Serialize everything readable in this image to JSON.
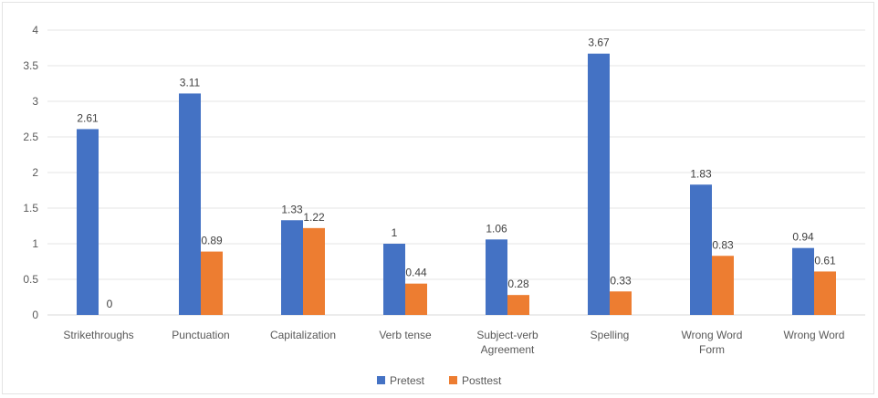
{
  "chart_data": {
    "type": "bar",
    "title": "",
    "xlabel": "",
    "ylabel": "",
    "ylim": [
      0,
      4
    ],
    "yticks": [
      "0",
      "0.5",
      "1",
      "1.5",
      "2",
      "2.5",
      "3",
      "3.5",
      "4"
    ],
    "grid": true,
    "legend_position": "bottom",
    "categories": [
      [
        "Strikethroughs"
      ],
      [
        "Punctuation"
      ],
      [
        "Capitalization"
      ],
      [
        "Verb tense"
      ],
      [
        "Subject-verb",
        "Agreement"
      ],
      [
        "Spelling"
      ],
      [
        "Wrong Word",
        "Form"
      ],
      [
        "Wrong Word"
      ]
    ],
    "series": [
      {
        "name": "Pretest",
        "color": "#4472C4",
        "values": [
          2.61,
          3.11,
          1.33,
          1,
          1.06,
          3.67,
          1.83,
          0.94
        ],
        "labels": [
          "2.61",
          "3.11",
          "1.33",
          "1",
          "1.06",
          "3.67",
          "1.83",
          "0.94"
        ]
      },
      {
        "name": "Posttest",
        "color": "#ED7D31",
        "values": [
          0,
          0.89,
          1.22,
          0.44,
          0.28,
          0.33,
          0.83,
          0.61
        ],
        "labels": [
          "0",
          "0.89",
          "1.22",
          "0.44",
          "0.28",
          "0.33",
          "0.83",
          "0.61"
        ]
      }
    ]
  }
}
